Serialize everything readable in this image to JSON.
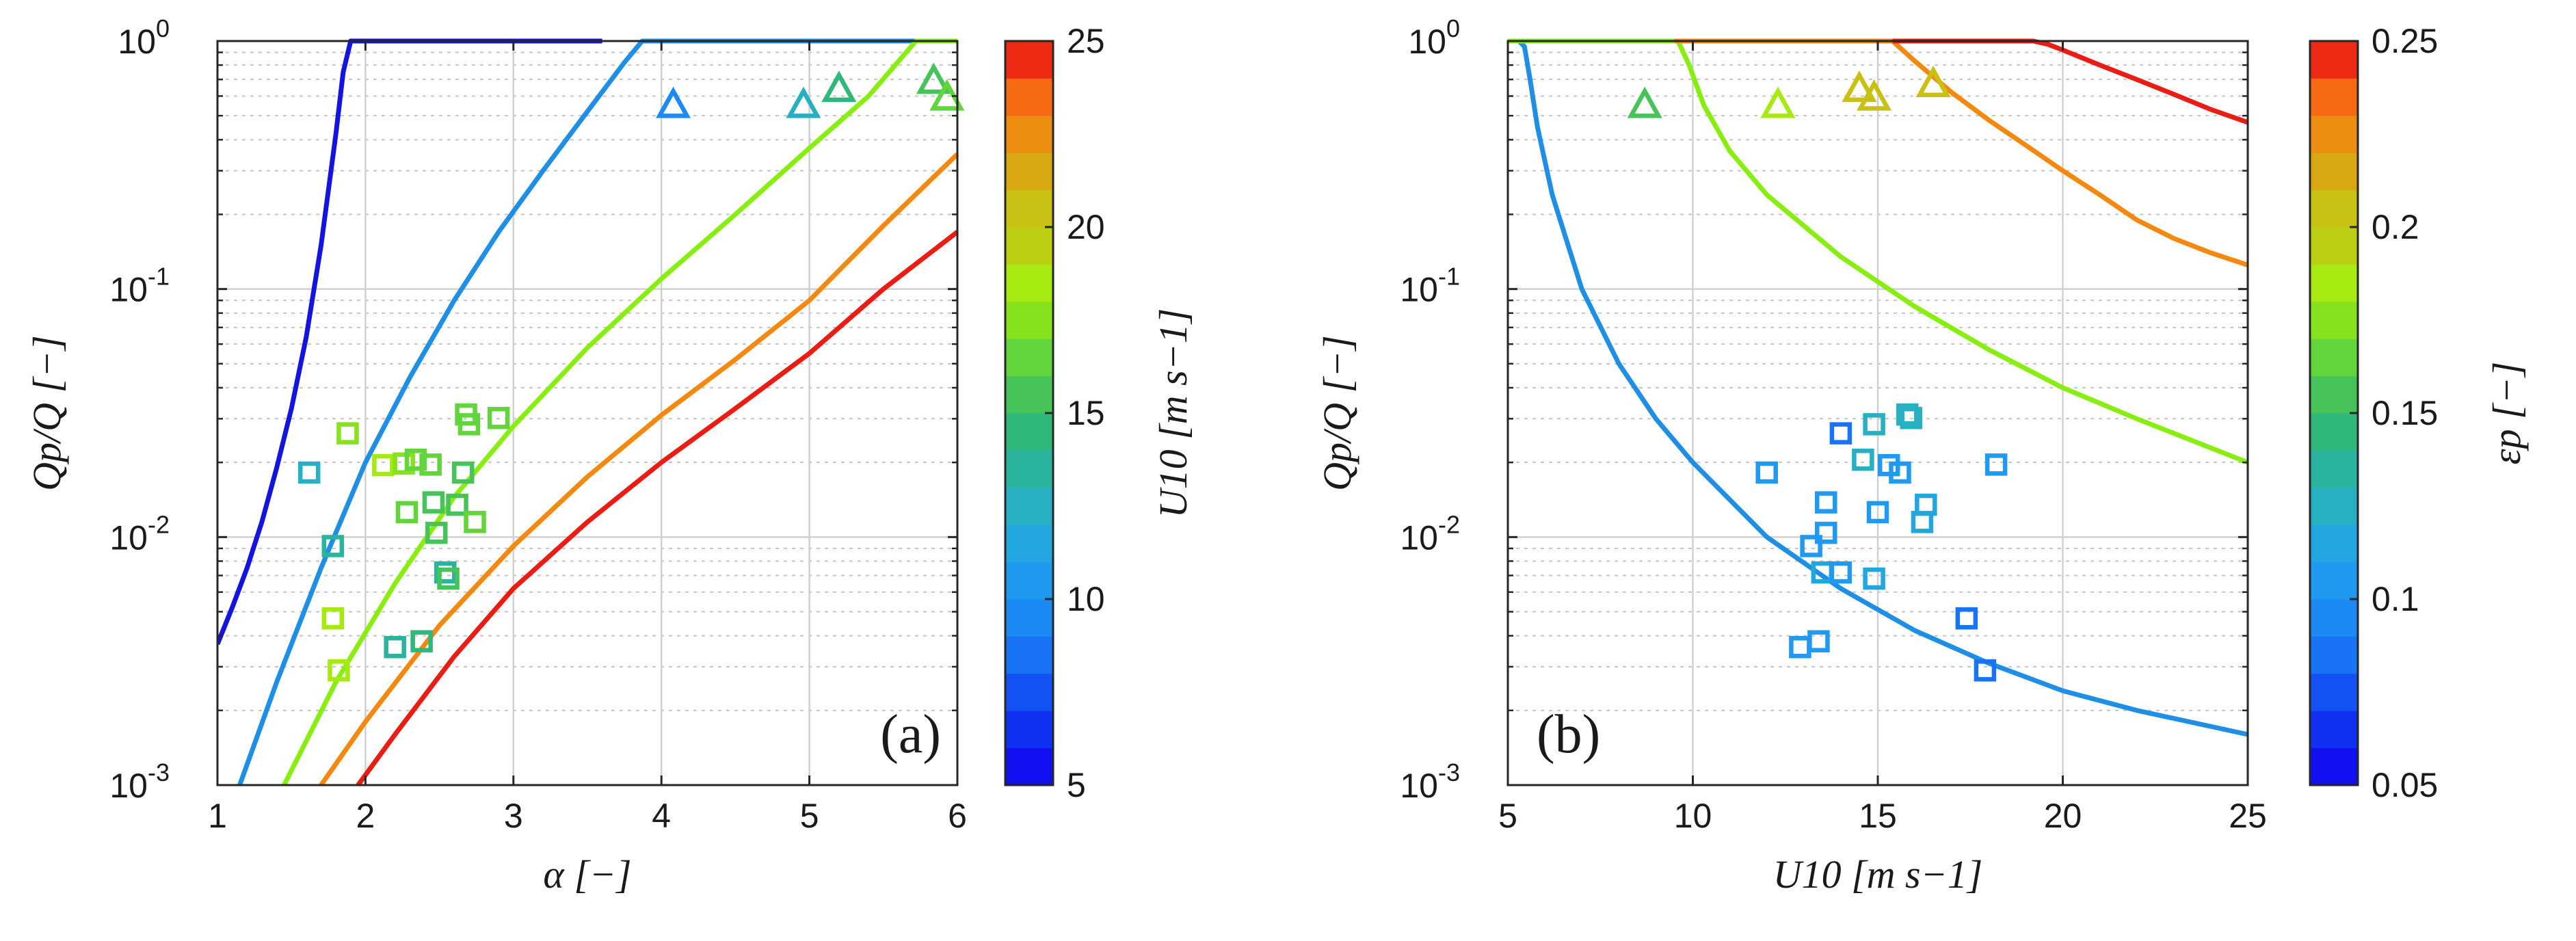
{
  "chart_data": [
    {
      "type": "line",
      "panel_label": "(a)",
      "xlabel": "α [−]",
      "ylabel": "Qp/Q [−]",
      "xlim": [
        1,
        6
      ],
      "ylim_log10": [
        -3,
        0
      ],
      "yscale": "log",
      "grid": true,
      "xticks": [
        "1",
        "2",
        "3",
        "4",
        "5",
        "6"
      ],
      "yticks": [
        {
          "base": "10",
          "exp": "-3"
        },
        {
          "base": "10",
          "exp": "-2"
        },
        {
          "base": "10",
          "exp": "-1"
        },
        {
          "base": "10",
          "exp": "0"
        }
      ],
      "color_var": "U10 [m s−1]",
      "series": [
        {
          "name": "U10 = 5 m s−1",
          "param": 5,
          "color": "#1414e0",
          "x": [
            1.0,
            1.1,
            1.2,
            1.3,
            1.4,
            1.5,
            1.6,
            1.7,
            1.8,
            1.85,
            1.9,
            1.92,
            2.0,
            3.6
          ],
          "y": [
            0.0037,
            0.0052,
            0.0075,
            0.0115,
            0.019,
            0.033,
            0.064,
            0.15,
            0.42,
            0.75,
            1.0,
            1.0,
            1.0,
            1.0
          ]
        },
        {
          "name": "U10 = 10 m s−1",
          "param": 10,
          "color": "#1f8fe6",
          "x": [
            1.15,
            1.4,
            1.7,
            2.0,
            2.3,
            2.6,
            2.9,
            3.2,
            3.5,
            3.75,
            3.87,
            6.0
          ],
          "y": [
            0.001,
            0.0026,
            0.0075,
            0.02,
            0.044,
            0.09,
            0.17,
            0.3,
            0.52,
            0.82,
            1.0,
            1.0
          ]
        },
        {
          "name": "U10 = 15 m s−1",
          "param": 15,
          "color": "#88ee10",
          "x": [
            1.45,
            1.8,
            2.2,
            2.6,
            3.0,
            3.5,
            4.0,
            4.5,
            5.0,
            5.4,
            5.72,
            6.0
          ],
          "y": [
            0.001,
            0.0026,
            0.0065,
            0.0145,
            0.028,
            0.058,
            0.11,
            0.2,
            0.37,
            0.6,
            1.0,
            1.0
          ]
        },
        {
          "name": "U10 = 20 m s−1",
          "param": 20,
          "color": "#f5880e",
          "x": [
            1.7,
            2.0,
            2.5,
            3.0,
            3.5,
            4.0,
            4.5,
            5.0,
            5.5,
            6.0
          ],
          "y": [
            0.001,
            0.0018,
            0.0044,
            0.0092,
            0.0175,
            0.031,
            0.052,
            0.09,
            0.18,
            0.35
          ]
        },
        {
          "name": "U10 = 25 m s−1",
          "param": 25,
          "color": "#ea1c14",
          "x": [
            1.95,
            2.2,
            2.6,
            3.0,
            3.5,
            4.0,
            4.5,
            5.0,
            5.5,
            6.0
          ],
          "y": [
            0.001,
            0.0016,
            0.0033,
            0.0062,
            0.0115,
            0.02,
            0.033,
            0.055,
            0.1,
            0.17
          ]
        }
      ],
      "squares": [
        {
          "x": 1.62,
          "y": 0.0182,
          "c": 12.0
        },
        {
          "x": 1.78,
          "y": 0.0092,
          "c": 13.0
        },
        {
          "x": 1.78,
          "y": 0.0047,
          "c": 18.0
        },
        {
          "x": 1.82,
          "y": 0.0029,
          "c": 18.5
        },
        {
          "x": 1.88,
          "y": 0.0262,
          "c": 17.5
        },
        {
          "x": 2.12,
          "y": 0.0195,
          "c": 18.5
        },
        {
          "x": 2.2,
          "y": 0.0036,
          "c": 13.0
        },
        {
          "x": 2.26,
          "y": 0.0198,
          "c": 17.0
        },
        {
          "x": 2.28,
          "y": 0.0126,
          "c": 16.5
        },
        {
          "x": 2.34,
          "y": 0.0205,
          "c": 16.0
        },
        {
          "x": 2.38,
          "y": 0.0038,
          "c": 14.0
        },
        {
          "x": 2.44,
          "y": 0.0196,
          "c": 16.0
        },
        {
          "x": 2.46,
          "y": 0.0138,
          "c": 15.0
        },
        {
          "x": 2.48,
          "y": 0.0104,
          "c": 15.5
        },
        {
          "x": 2.54,
          "y": 0.0072,
          "c": 13.5
        },
        {
          "x": 2.56,
          "y": 0.0068,
          "c": 15.5
        },
        {
          "x": 2.62,
          "y": 0.0135,
          "c": 15.0
        },
        {
          "x": 2.66,
          "y": 0.0182,
          "c": 15.5
        },
        {
          "x": 2.68,
          "y": 0.0312,
          "c": 16.0
        },
        {
          "x": 2.7,
          "y": 0.0285,
          "c": 16.5
        },
        {
          "x": 2.74,
          "y": 0.0115,
          "c": 16.5
        },
        {
          "x": 2.9,
          "y": 0.0302,
          "c": 16.5
        }
      ],
      "triangles": [
        {
          "x": 4.08,
          "y": 0.56,
          "c": 9.0
        },
        {
          "x": 4.96,
          "y": 0.56,
          "c": 12.5
        },
        {
          "x": 5.2,
          "y": 0.65,
          "c": 14.0
        },
        {
          "x": 5.84,
          "y": 0.7,
          "c": 15.5
        },
        {
          "x": 5.93,
          "y": 0.6,
          "c": 16.0
        }
      ],
      "colorbar": {
        "label": "U10 [m s−1]",
        "range": [
          5,
          25
        ],
        "ticks": [
          "5",
          "10",
          "15",
          "20",
          "25"
        ],
        "levels": 20
      }
    },
    {
      "type": "line",
      "panel_label": "(b)",
      "xlabel": "U10 [m s−1]",
      "ylabel": "Qp/Q [−]",
      "xlim": [
        5,
        25
      ],
      "ylim_log10": [
        -3,
        0
      ],
      "yscale": "log",
      "grid": true,
      "xticks": [
        "5",
        "10",
        "15",
        "20",
        "25"
      ],
      "yticks": [
        {
          "base": "10",
          "exp": "-3"
        },
        {
          "base": "10",
          "exp": "-2"
        },
        {
          "base": "10",
          "exp": "-1"
        },
        {
          "base": "10",
          "exp": "0"
        }
      ],
      "color_var": "εp [−]",
      "series": [
        {
          "name": "εp = 0.10",
          "param": 0.1,
          "color": "#1f8fe6",
          "x": [
            5.0,
            5.3,
            5.45,
            5.6,
            5.8,
            6.2,
            7.0,
            8.0,
            9.0,
            10.0,
            12.0,
            14.0,
            16.0,
            18.0,
            20.0,
            22.0,
            25.0
          ],
          "y": [
            1.0,
            1.0,
            0.95,
            0.7,
            0.45,
            0.24,
            0.1,
            0.05,
            0.03,
            0.02,
            0.01,
            0.0062,
            0.0042,
            0.0031,
            0.0024,
            0.002,
            0.0016
          ]
        },
        {
          "name": "εp = 0.15",
          "param": 0.15,
          "color": "#88ee10",
          "x": [
            5.0,
            9.6,
            9.9,
            10.3,
            11.0,
            12.0,
            14.0,
            16.0,
            18.0,
            20.0,
            22.0,
            25.0
          ],
          "y": [
            1.0,
            1.0,
            0.8,
            0.55,
            0.36,
            0.24,
            0.135,
            0.085,
            0.057,
            0.04,
            0.03,
            0.02
          ]
        },
        {
          "name": "εp = 0.20",
          "param": 0.2,
          "color": "#f5880e",
          "x": [
            9.5,
            15.4,
            16.0,
            17.0,
            18.0,
            19.0,
            20.0,
            21.0,
            22.0,
            23.0,
            24.0,
            25.0
          ],
          "y": [
            1.0,
            1.0,
            0.83,
            0.62,
            0.48,
            0.38,
            0.3,
            0.24,
            0.19,
            0.16,
            0.14,
            0.125
          ]
        },
        {
          "name": "εp = 0.25",
          "param": 0.25,
          "color": "#ea1c14",
          "x": [
            15.4,
            19.2,
            19.6,
            20.0,
            21.0,
            22.0,
            23.0,
            24.0,
            25.0
          ],
          "y": [
            1.0,
            1.0,
            0.97,
            0.92,
            0.8,
            0.7,
            0.61,
            0.53,
            0.47
          ]
        }
      ],
      "squares": [
        {
          "x": 12.0,
          "y": 0.0182,
          "c": 0.1
        },
        {
          "x": 12.9,
          "y": 0.0036,
          "c": 0.1
        },
        {
          "x": 13.2,
          "y": 0.0092,
          "c": 0.1
        },
        {
          "x": 13.4,
          "y": 0.0038,
          "c": 0.1
        },
        {
          "x": 13.5,
          "y": 0.0072,
          "c": 0.11
        },
        {
          "x": 13.6,
          "y": 0.0104,
          "c": 0.1
        },
        {
          "x": 13.6,
          "y": 0.0138,
          "c": 0.1
        },
        {
          "x": 14.0,
          "y": 0.0262,
          "c": 0.09
        },
        {
          "x": 14.0,
          "y": 0.0072,
          "c": 0.1
        },
        {
          "x": 14.6,
          "y": 0.0205,
          "c": 0.13
        },
        {
          "x": 14.9,
          "y": 0.0285,
          "c": 0.13
        },
        {
          "x": 14.9,
          "y": 0.0068,
          "c": 0.11
        },
        {
          "x": 15.0,
          "y": 0.0126,
          "c": 0.1
        },
        {
          "x": 15.3,
          "y": 0.0195,
          "c": 0.1
        },
        {
          "x": 15.6,
          "y": 0.0182,
          "c": 0.1
        },
        {
          "x": 15.8,
          "y": 0.0312,
          "c": 0.13
        },
        {
          "x": 15.9,
          "y": 0.0302,
          "c": 0.13
        },
        {
          "x": 16.2,
          "y": 0.0115,
          "c": 0.12
        },
        {
          "x": 16.3,
          "y": 0.0135,
          "c": 0.11
        },
        {
          "x": 17.4,
          "y": 0.0047,
          "c": 0.09
        },
        {
          "x": 17.9,
          "y": 0.0029,
          "c": 0.08
        },
        {
          "x": 18.2,
          "y": 0.0196,
          "c": 0.1
        }
      ],
      "triangles": [
        {
          "x": 8.7,
          "y": 0.56,
          "c": 0.16
        },
        {
          "x": 12.3,
          "y": 0.56,
          "c": 0.18
        },
        {
          "x": 14.5,
          "y": 0.65,
          "c": 0.2
        },
        {
          "x": 14.9,
          "y": 0.6,
          "c": 0.205
        },
        {
          "x": 16.5,
          "y": 0.68,
          "c": 0.21
        }
      ],
      "colorbar": {
        "label": "εp [−]",
        "range": [
          0.05,
          0.25
        ],
        "ticks": [
          "0.05",
          "0.1",
          "0.15",
          "0.2",
          "0.25"
        ],
        "levels": 20
      }
    }
  ],
  "colormap": [
    "#1010f0",
    "#1030f2",
    "#1452f4",
    "#1874f5",
    "#1c8af5",
    "#2099f0",
    "#22a6e0",
    "#26b0c2",
    "#2ab49e",
    "#30b87a",
    "#46c45a",
    "#62d43c",
    "#86e21c",
    "#a6ea12",
    "#bccf12",
    "#c8c012",
    "#d8a812",
    "#ec8c10",
    "#f56a12",
    "#ee2a14"
  ]
}
